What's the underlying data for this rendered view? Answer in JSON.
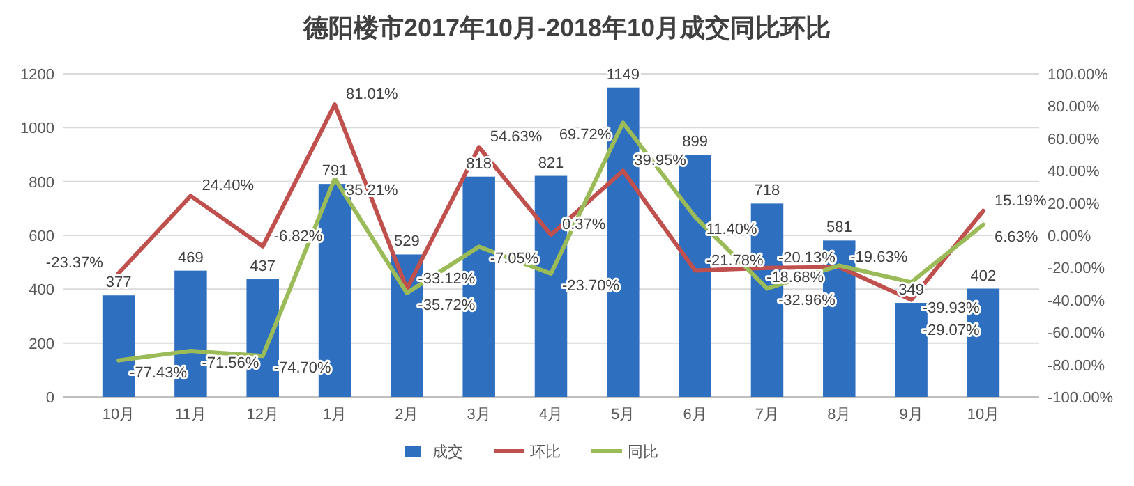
{
  "chart_data": {
    "type": "bar",
    "title": "德阳楼市2017年10月-2018年10月成交同比环比",
    "categories": [
      "10月",
      "11月",
      "12月",
      "1月",
      "2月",
      "3月",
      "4月",
      "5月",
      "6月",
      "7月",
      "8月",
      "9月",
      "10月"
    ],
    "series": [
      {
        "name": "成交",
        "color": "#2e6fc0",
        "values": [
          377,
          469,
          437,
          791,
          529,
          818,
          821,
          1149,
          899,
          718,
          581,
          349,
          402
        ],
        "value_labels": [
          "377",
          "469",
          "437",
          "791",
          "529",
          "818",
          "821",
          "1149",
          "899",
          "718",
          "581",
          "349",
          "402"
        ]
      },
      {
        "name": "环比",
        "type": "line",
        "axis": "y2",
        "color": "#c0504d",
        "values": [
          -23.37,
          24.4,
          -6.82,
          81.01,
          -33.12,
          54.63,
          0.37,
          39.95,
          -21.78,
          -20.13,
          -19.63,
          -39.93,
          15.19
        ],
        "value_labels": [
          "-23.37%",
          "24.40%",
          "-6.82%",
          "81.01%",
          "-33.12%",
          "54.63%",
          "0.37%",
          "39.95%",
          "-21.78%",
          "-20.13%",
          "-19.63%",
          "-39.93%",
          "15.19%"
        ]
      },
      {
        "name": "同比",
        "type": "line",
        "axis": "y2",
        "color": "#9bbb59",
        "values": [
          -77.43,
          -71.56,
          -74.7,
          35.21,
          -35.72,
          -7.05,
          -23.7,
          69.72,
          11.4,
          -32.96,
          -18.68,
          -29.07,
          6.63
        ],
        "value_labels": [
          "-77.43%",
          "-71.56%",
          "-74.70%",
          "35.21%",
          "-35.72%",
          "-7.05%",
          "-23.70%",
          "69.72%",
          "11.40%",
          "-32.96%",
          "-18.68%",
          "-29.07%",
          "6.63%"
        ]
      }
    ],
    "ylim": [
      0,
      1200
    ],
    "yticks": [
      0,
      200,
      400,
      600,
      800,
      1000,
      1200
    ],
    "y2lim": [
      -100,
      100
    ],
    "y2ticks": [
      {
        "value": -100,
        "label": "-100.00%"
      },
      {
        "value": -80,
        "label": "-80.00%"
      },
      {
        "value": -60,
        "label": "-60.00%"
      },
      {
        "value": -40,
        "label": "-40.00%"
      },
      {
        "value": -20,
        "label": "-20.00%"
      },
      {
        "value": 0,
        "label": "0.00%"
      },
      {
        "value": 20,
        "label": "20.00%"
      },
      {
        "value": 40,
        "label": "40.00%"
      },
      {
        "value": 60,
        "label": "60.00%"
      },
      {
        "value": 80,
        "label": "80.00%"
      },
      {
        "value": 100,
        "label": "100.00%"
      }
    ],
    "grid": "y",
    "legend": "bottom",
    "marker": "none",
    "line_style": "solid"
  }
}
